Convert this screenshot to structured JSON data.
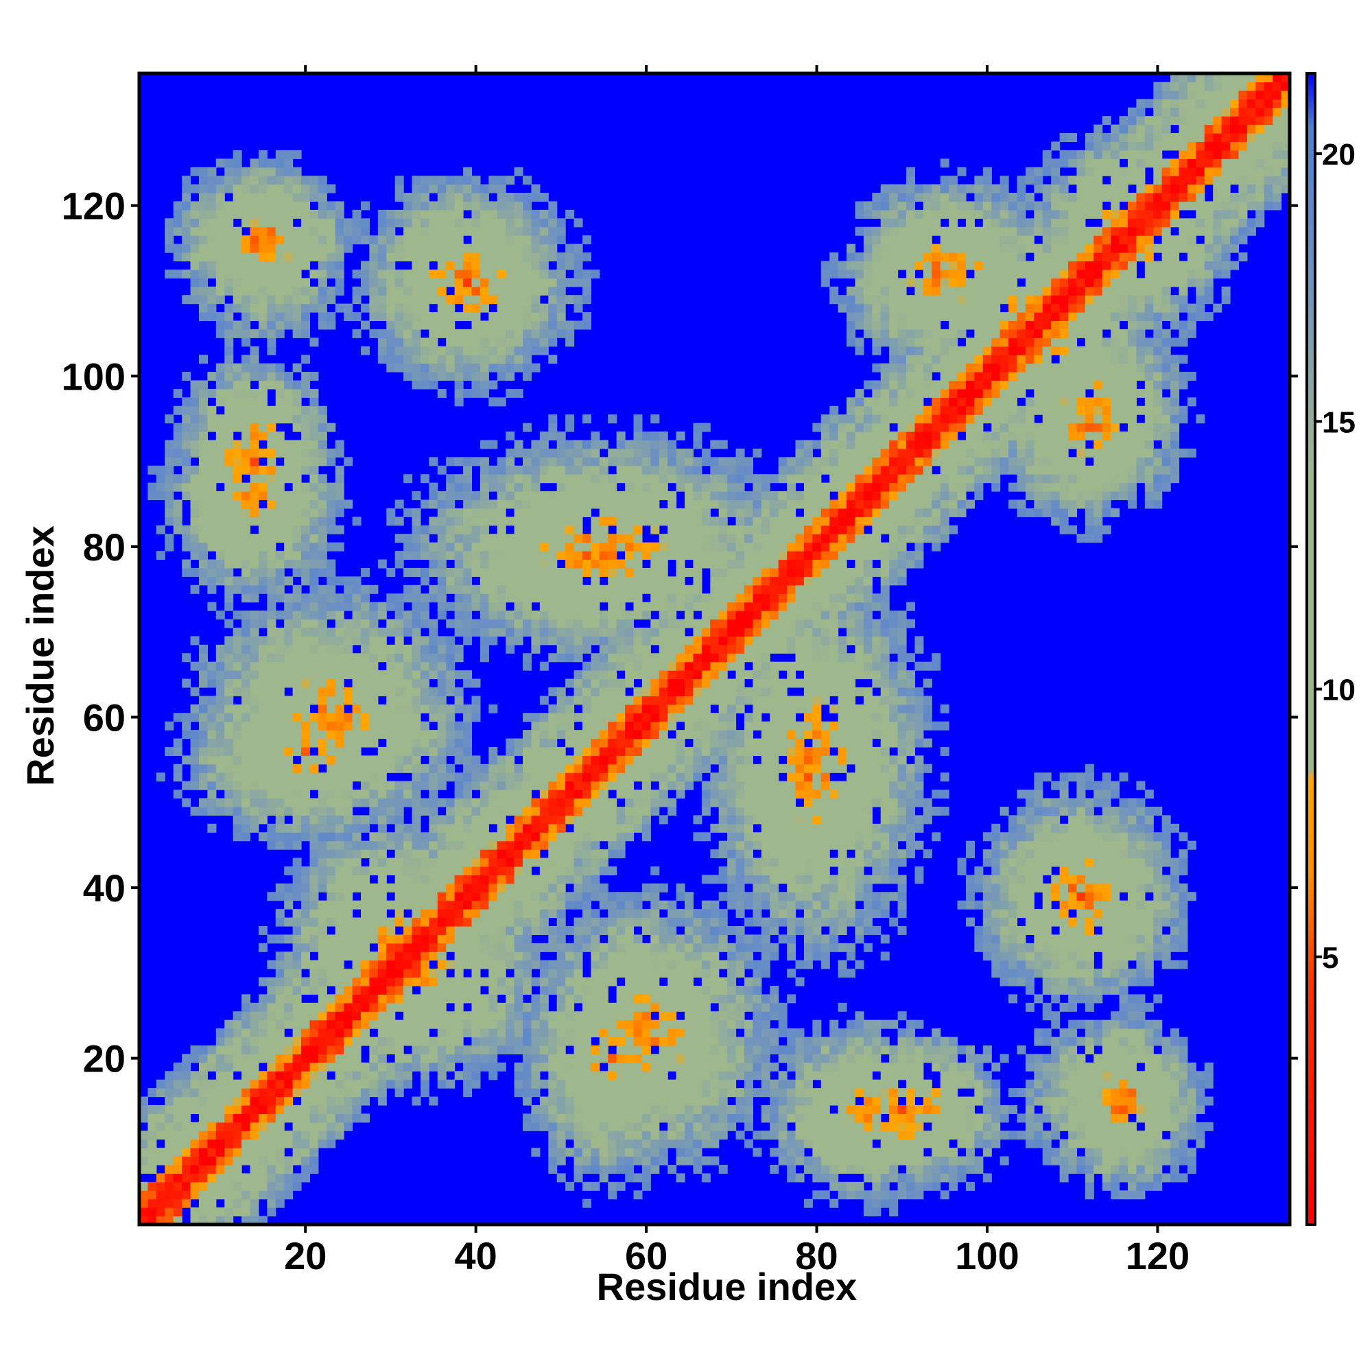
{
  "chart_data": {
    "type": "heatmap",
    "title": "",
    "xlabel": "Residue index",
    "ylabel": "Residue index",
    "n_residues": 135,
    "xlim": [
      0.5,
      135.5
    ],
    "ylim": [
      0.5,
      135.5
    ],
    "x_ticks": [
      20,
      40,
      60,
      80,
      100,
      120
    ],
    "y_ticks": [
      20,
      40,
      60,
      80,
      100,
      120
    ],
    "colorbar": {
      "ticks": [
        5,
        10,
        15,
        20
      ],
      "range": [
        0,
        21.5
      ],
      "stops": [
        {
          "value": 0,
          "color": "#ff0000"
        },
        {
          "value": 4.5,
          "color": "#ff3300"
        },
        {
          "value": 6.5,
          "color": "#ff8c00"
        },
        {
          "value": 8.3,
          "color": "#ffa500"
        },
        {
          "value": 8.5,
          "color": "#9fb78d"
        },
        {
          "value": 14,
          "color": "#9fb78d"
        },
        {
          "value": 18,
          "color": "#6b8fc4"
        },
        {
          "value": 20.5,
          "color": "#4f7fd0"
        },
        {
          "value": 21.5,
          "color": "#0000ff"
        }
      ]
    },
    "background_value": 21.5,
    "diagonal": {
      "band_width_residues": 2.2,
      "value_on_diagonal": 1.5
    },
    "contact_clusters": [
      {
        "x": [
          12,
          18
        ],
        "y": [
          114,
          118
        ],
        "peak": 5.5
      },
      {
        "x": [
          33,
          45
        ],
        "y": [
          106,
          116
        ],
        "peak": 6.5
      },
      {
        "x": [
          12,
          16
        ],
        "y": [
          86,
          95
        ],
        "peak": 5.5
      },
      {
        "x": [
          14,
          32
        ],
        "y": [
          52,
          68
        ],
        "peak": 6.5
      },
      {
        "x": [
          24,
          36
        ],
        "y": [
          24,
          42
        ],
        "peak": 6.5
      },
      {
        "x": [
          40,
          70
        ],
        "y": [
          74,
          86
        ],
        "peak": 6.5
      },
      {
        "x": [
          52,
          60
        ],
        "y": [
          12,
          28
        ],
        "peak": 7.0
      },
      {
        "x": [
          80,
          92
        ],
        "y": [
          10,
          18
        ],
        "peak": 7.0
      },
      {
        "x": [
          74,
          84
        ],
        "y": [
          40,
          68
        ],
        "peak": 6.5
      },
      {
        "x": [
          106,
          116
        ],
        "y": [
          34,
          44
        ],
        "peak": 6.0
      },
      {
        "x": [
          92,
          100
        ],
        "y": [
          108,
          116
        ],
        "peak": 6.0
      },
      {
        "x": [
          108,
          116
        ],
        "y": [
          90,
          100
        ],
        "peak": 6.0
      },
      {
        "x": [
          100,
          112
        ],
        "y": [
          100,
          112
        ],
        "peak": 6.0
      },
      {
        "x": [
          112,
          122
        ],
        "y": [
          112,
          122
        ],
        "peak": 6.0
      },
      {
        "x": [
          108,
          120
        ],
        "y": [
          10,
          20
        ],
        "peak": 9.0
      }
    ]
  }
}
